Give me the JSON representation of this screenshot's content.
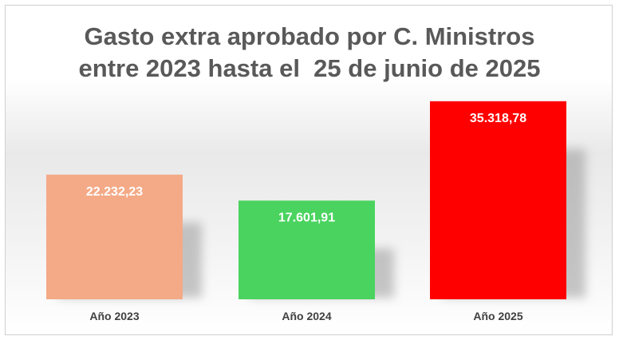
{
  "chart_data": {
    "type": "bar",
    "title_lines": [
      "Gasto extra aprobado por C. Ministros",
      "entre 2023 hasta el  25 de junio de 2025"
    ],
    "categories": [
      "Año 2023",
      "Año 2024",
      "Año 2025"
    ],
    "values": [
      22232.23,
      17601.91,
      35318.78
    ],
    "value_labels": [
      "22.232,23",
      "17.601,91",
      "35.318,78"
    ],
    "colors": [
      "#f4aa87",
      "#4ad35f",
      "#ff0000"
    ],
    "ylim": [
      0,
      38000
    ],
    "grid": false,
    "legend": "none"
  }
}
